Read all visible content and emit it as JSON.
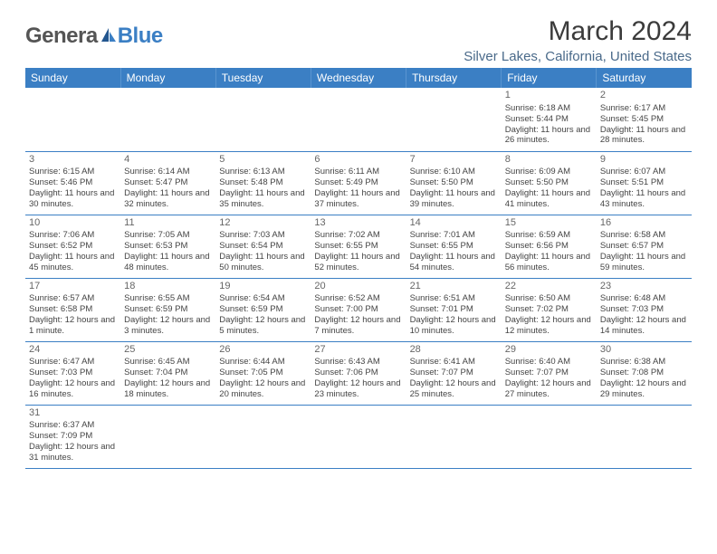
{
  "logo": {
    "part1": "Genera",
    "part2": "Blue"
  },
  "title": "March 2024",
  "location": "Silver Lakes, California, United States",
  "colors": {
    "header_bg": "#3b7fc4",
    "header_text": "#ffffff",
    "border": "#3b7fc4",
    "daynum": "#666666",
    "body_text": "#444444",
    "title_text": "#3b3b3b",
    "location_text": "#4a6a8a"
  },
  "weekdays": [
    "Sunday",
    "Monday",
    "Tuesday",
    "Wednesday",
    "Thursday",
    "Friday",
    "Saturday"
  ],
  "firstDayOffset": 5,
  "daysInMonth": 31,
  "days": {
    "1": {
      "sunrise": "6:18 AM",
      "sunset": "5:44 PM",
      "daylight": "11 hours and 26 minutes."
    },
    "2": {
      "sunrise": "6:17 AM",
      "sunset": "5:45 PM",
      "daylight": "11 hours and 28 minutes."
    },
    "3": {
      "sunrise": "6:15 AM",
      "sunset": "5:46 PM",
      "daylight": "11 hours and 30 minutes."
    },
    "4": {
      "sunrise": "6:14 AM",
      "sunset": "5:47 PM",
      "daylight": "11 hours and 32 minutes."
    },
    "5": {
      "sunrise": "6:13 AM",
      "sunset": "5:48 PM",
      "daylight": "11 hours and 35 minutes."
    },
    "6": {
      "sunrise": "6:11 AM",
      "sunset": "5:49 PM",
      "daylight": "11 hours and 37 minutes."
    },
    "7": {
      "sunrise": "6:10 AM",
      "sunset": "5:50 PM",
      "daylight": "11 hours and 39 minutes."
    },
    "8": {
      "sunrise": "6:09 AM",
      "sunset": "5:50 PM",
      "daylight": "11 hours and 41 minutes."
    },
    "9": {
      "sunrise": "6:07 AM",
      "sunset": "5:51 PM",
      "daylight": "11 hours and 43 minutes."
    },
    "10": {
      "sunrise": "7:06 AM",
      "sunset": "6:52 PM",
      "daylight": "11 hours and 45 minutes."
    },
    "11": {
      "sunrise": "7:05 AM",
      "sunset": "6:53 PM",
      "daylight": "11 hours and 48 minutes."
    },
    "12": {
      "sunrise": "7:03 AM",
      "sunset": "6:54 PM",
      "daylight": "11 hours and 50 minutes."
    },
    "13": {
      "sunrise": "7:02 AM",
      "sunset": "6:55 PM",
      "daylight": "11 hours and 52 minutes."
    },
    "14": {
      "sunrise": "7:01 AM",
      "sunset": "6:55 PM",
      "daylight": "11 hours and 54 minutes."
    },
    "15": {
      "sunrise": "6:59 AM",
      "sunset": "6:56 PM",
      "daylight": "11 hours and 56 minutes."
    },
    "16": {
      "sunrise": "6:58 AM",
      "sunset": "6:57 PM",
      "daylight": "11 hours and 59 minutes."
    },
    "17": {
      "sunrise": "6:57 AM",
      "sunset": "6:58 PM",
      "daylight": "12 hours and 1 minute."
    },
    "18": {
      "sunrise": "6:55 AM",
      "sunset": "6:59 PM",
      "daylight": "12 hours and 3 minutes."
    },
    "19": {
      "sunrise": "6:54 AM",
      "sunset": "6:59 PM",
      "daylight": "12 hours and 5 minutes."
    },
    "20": {
      "sunrise": "6:52 AM",
      "sunset": "7:00 PM",
      "daylight": "12 hours and 7 minutes."
    },
    "21": {
      "sunrise": "6:51 AM",
      "sunset": "7:01 PM",
      "daylight": "12 hours and 10 minutes."
    },
    "22": {
      "sunrise": "6:50 AM",
      "sunset": "7:02 PM",
      "daylight": "12 hours and 12 minutes."
    },
    "23": {
      "sunrise": "6:48 AM",
      "sunset": "7:03 PM",
      "daylight": "12 hours and 14 minutes."
    },
    "24": {
      "sunrise": "6:47 AM",
      "sunset": "7:03 PM",
      "daylight": "12 hours and 16 minutes."
    },
    "25": {
      "sunrise": "6:45 AM",
      "sunset": "7:04 PM",
      "daylight": "12 hours and 18 minutes."
    },
    "26": {
      "sunrise": "6:44 AM",
      "sunset": "7:05 PM",
      "daylight": "12 hours and 20 minutes."
    },
    "27": {
      "sunrise": "6:43 AM",
      "sunset": "7:06 PM",
      "daylight": "12 hours and 23 minutes."
    },
    "28": {
      "sunrise": "6:41 AM",
      "sunset": "7:07 PM",
      "daylight": "12 hours and 25 minutes."
    },
    "29": {
      "sunrise": "6:40 AM",
      "sunset": "7:07 PM",
      "daylight": "12 hours and 27 minutes."
    },
    "30": {
      "sunrise": "6:38 AM",
      "sunset": "7:08 PM",
      "daylight": "12 hours and 29 minutes."
    },
    "31": {
      "sunrise": "6:37 AM",
      "sunset": "7:09 PM",
      "daylight": "12 hours and 31 minutes."
    }
  },
  "labels": {
    "sunrise": "Sunrise: ",
    "sunset": "Sunset: ",
    "daylight": "Daylight: "
  }
}
